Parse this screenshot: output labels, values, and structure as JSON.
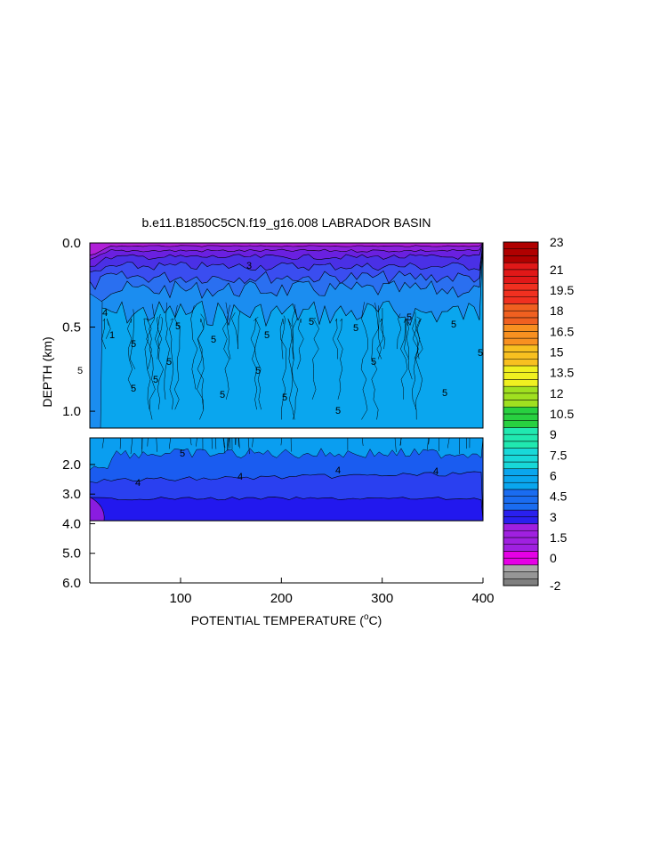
{
  "chart_data": {
    "type": "heatmap",
    "title": "b.e11.B1850C5CN.f19_g16.008 LABRADOR BASIN",
    "xlabel": "POTENTIAL TEMPERATURE (",
    "xlabel_super": "o",
    "xlabel_suffix": "C)",
    "ylabel": "DEPTH (km)",
    "xlim": [
      10,
      400
    ],
    "x_ticks": [
      {
        "value": 100,
        "label": "100"
      },
      {
        "value": 200,
        "label": "200"
      },
      {
        "value": 300,
        "label": "300"
      },
      {
        "value": 400,
        "label": "400"
      }
    ],
    "upper_panel": {
      "ylim": [
        0.0,
        1.1
      ],
      "y_ticks": [
        {
          "value": 0.0,
          "label": "0.0"
        },
        {
          "value": 0.5,
          "label": "0.5"
        },
        {
          "value": 1.0,
          "label": "1.0"
        }
      ]
    },
    "lower_panel": {
      "ylim": [
        1.1,
        6.0
      ],
      "y_ticks": [
        {
          "value": 2.0,
          "label": "2.0"
        },
        {
          "value": 3.0,
          "label": "3.0"
        },
        {
          "value": 4.0,
          "label": "4.0"
        },
        {
          "value": 5.0,
          "label": "5.0"
        },
        {
          "value": 6.0,
          "label": "6.0"
        }
      ],
      "bottom_depth": 3.9
    },
    "contour_labels": [
      "1",
      "3",
      "4",
      "5"
    ],
    "colorbar": {
      "levels": [
        -2,
        -1.5,
        -1,
        -0.5,
        0,
        0.5,
        1,
        1.5,
        2,
        2.5,
        3,
        3.5,
        4,
        4.5,
        5,
        5.5,
        6,
        6.5,
        7,
        7.5,
        8,
        8.5,
        9,
        9.5,
        10,
        10.5,
        11,
        11.5,
        12,
        12.5,
        13,
        13.5,
        14,
        14.5,
        15,
        15.5,
        16,
        16.5,
        17,
        17.5,
        18,
        18.5,
        19,
        19.5,
        20,
        20.5,
        21,
        21.5,
        22,
        22.5,
        23
      ],
      "labels": [
        "23",
        "21",
        "19.5",
        "18",
        "16.5",
        "15",
        "13.5",
        "12",
        "10.5",
        "9",
        "7.5",
        "6",
        "4.5",
        "3",
        "1.5",
        "0",
        "-2"
      ],
      "label_values": [
        23,
        21,
        19.5,
        18,
        16.5,
        15,
        13.5,
        12,
        10.5,
        9,
        7.5,
        6,
        4.5,
        3,
        1.5,
        0,
        -2
      ]
    }
  }
}
